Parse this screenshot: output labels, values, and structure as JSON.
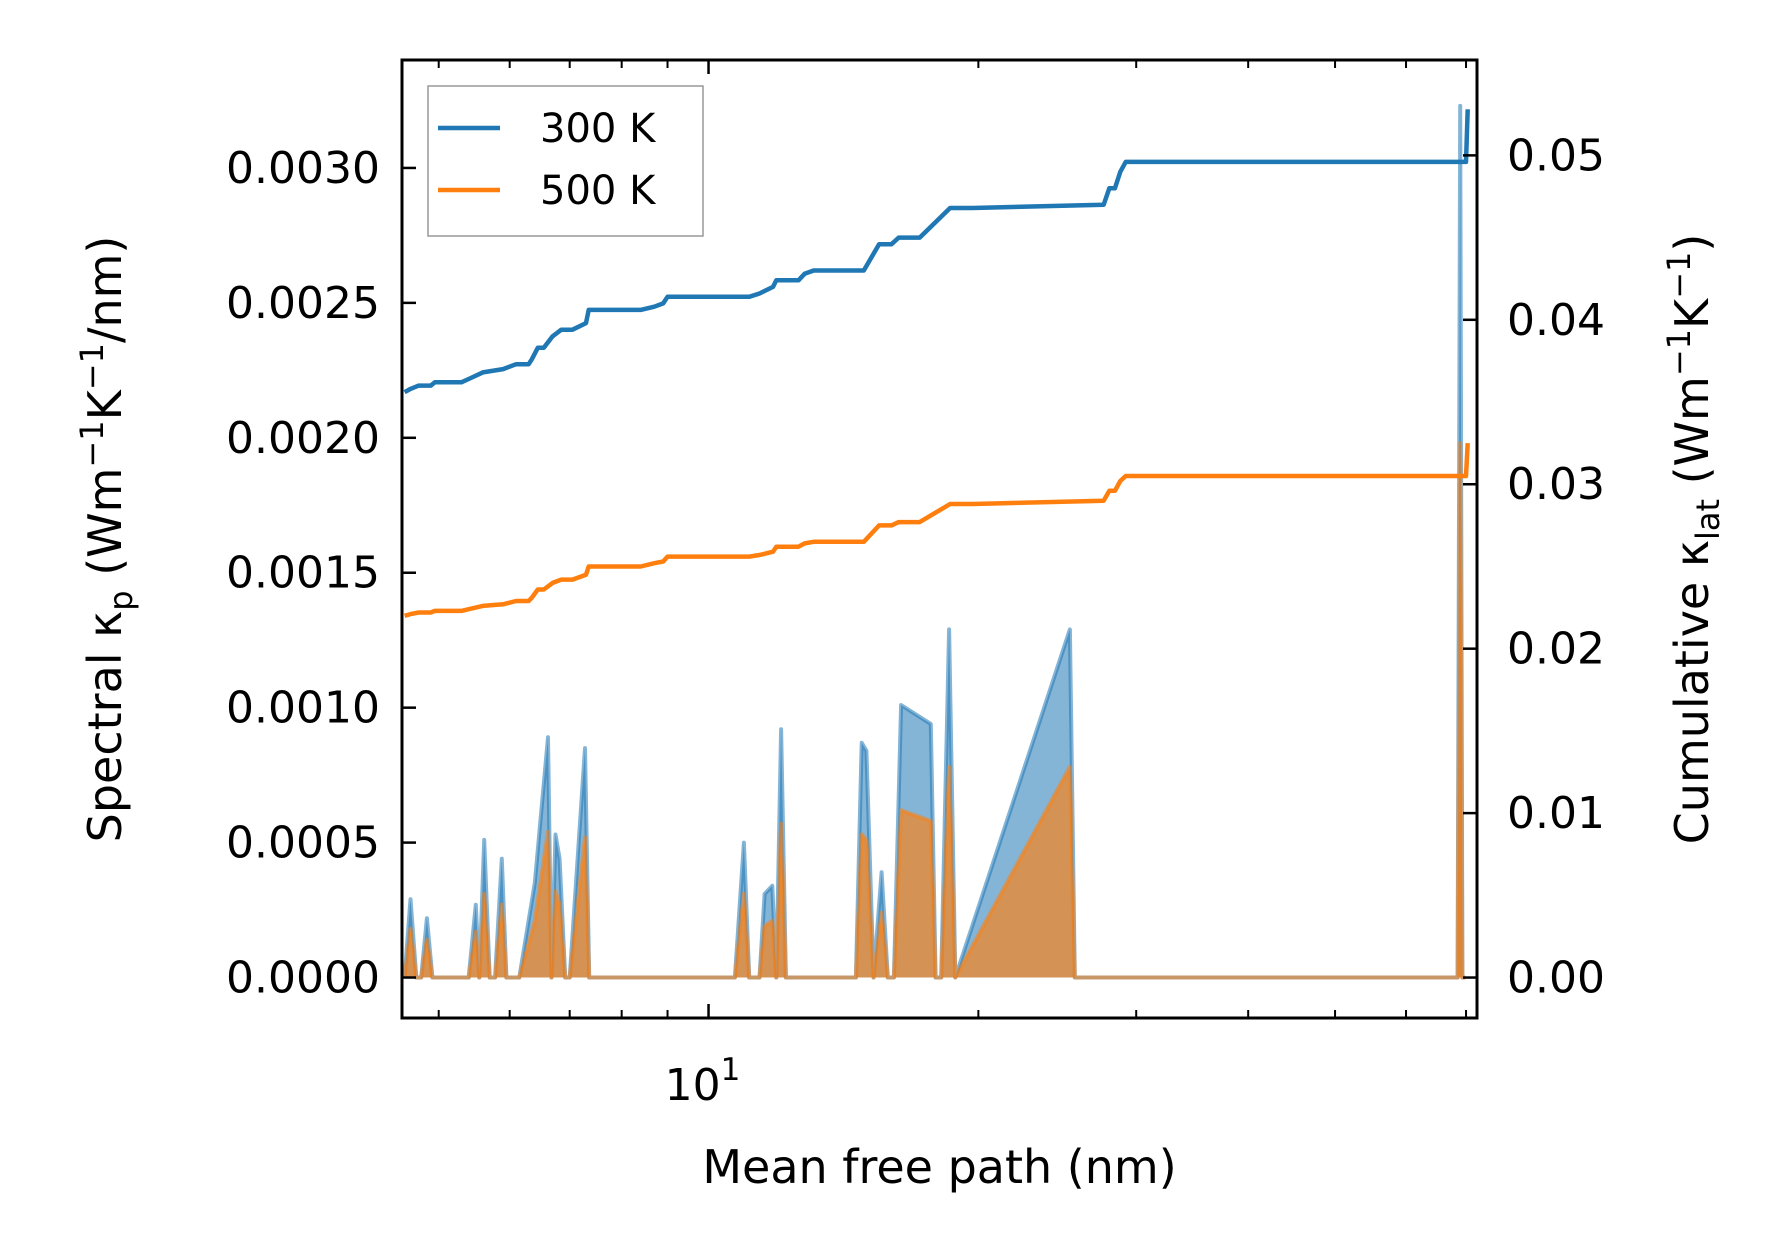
{
  "chart_data": {
    "type": "line",
    "title": "",
    "xlabel": "Mean free path (nm)",
    "xscale": "log",
    "xlim": [
      4.55,
      72
    ],
    "x_tick_labels": [
      {
        "value": 10,
        "base": "10",
        "exp": "1"
      }
    ],
    "ylabel_left": {
      "text": "Spectral κ",
      "sub": "p",
      "rest": " (Wm",
      "sup1": "−1",
      "mid": "K",
      "sup2": "−1",
      "end": "/nm)"
    },
    "ylabel_right": {
      "text": "Cumulative κ",
      "sub": "lat",
      "rest": " (Wm",
      "sup1": "−1",
      "mid": "K",
      "sup2": "−1",
      "end": ")"
    },
    "ylim_left": [
      -0.00015,
      0.0034
    ],
    "ylim_right": [
      -0.00246,
      0.0558
    ],
    "left_ticks": [
      "0.0000",
      "0.0005",
      "0.0010",
      "0.0015",
      "0.0020",
      "0.0025",
      "0.0030"
    ],
    "right_ticks": [
      "0.00",
      "0.01",
      "0.02",
      "0.03",
      "0.04",
      "0.05"
    ],
    "legend": {
      "location": "top-left",
      "entries": [
        "300 K",
        "500 K"
      ]
    },
    "colors": {
      "series_300": "#1f77b4",
      "series_500": "#ff7f0e",
      "fill_300": "#1f77b4",
      "fill_500": "#ff7f0e"
    },
    "series": [
      {
        "name": "300 K",
        "axis": "right",
        "kind": "cumulative",
        "x": [
          4.58,
          4.65,
          4.75,
          4.9,
          4.95,
          5.3,
          5.4,
          5.6,
          5.9,
          6.1,
          6.3,
          6.35,
          6.45,
          6.55,
          6.7,
          6.85,
          7.05,
          7.3,
          7.35,
          8.4,
          8.7,
          8.9,
          9.0,
          11.1,
          11.4,
          11.8,
          11.9,
          12.6,
          12.8,
          13.1,
          13.2,
          14.9,
          15.5,
          16.0,
          16.3,
          16.8,
          17.2,
          18.6,
          19.2,
          19.7,
          27.6,
          28.0,
          28.4,
          28.8,
          29.2,
          69.5,
          70.0,
          70.3
        ],
        "y": [
          0.0356,
          0.0358,
          0.036,
          0.036,
          0.0362,
          0.0362,
          0.0364,
          0.0368,
          0.037,
          0.0373,
          0.0373,
          0.0376,
          0.0383,
          0.0383,
          0.039,
          0.0394,
          0.0394,
          0.0398,
          0.0406,
          0.0406,
          0.0408,
          0.041,
          0.0414,
          0.0414,
          0.0416,
          0.042,
          0.0424,
          0.0424,
          0.0428,
          0.043,
          0.043,
          0.043,
          0.0446,
          0.0446,
          0.045,
          0.045,
          0.045,
          0.0468,
          0.0468,
          0.0468,
          0.047,
          0.048,
          0.048,
          0.049,
          0.0496,
          0.0496,
          0.0496,
          0.0528
        ]
      },
      {
        "name": "500 K",
        "axis": "right",
        "kind": "cumulative",
        "x": [
          4.58,
          4.65,
          4.75,
          4.9,
          4.95,
          5.3,
          5.4,
          5.6,
          5.9,
          6.1,
          6.3,
          6.35,
          6.45,
          6.55,
          6.7,
          6.85,
          7.05,
          7.3,
          7.35,
          8.4,
          8.7,
          8.9,
          9.0,
          11.1,
          11.4,
          11.8,
          11.9,
          12.6,
          12.8,
          13.1,
          13.2,
          14.9,
          15.5,
          16.0,
          16.3,
          16.8,
          17.2,
          18.6,
          19.2,
          19.7,
          27.6,
          28.0,
          28.4,
          28.8,
          29.2,
          69.5,
          70.0,
          70.3
        ],
        "y": [
          0.022,
          0.0221,
          0.0222,
          0.0222,
          0.0223,
          0.0223,
          0.0224,
          0.0226,
          0.0227,
          0.0229,
          0.0229,
          0.0231,
          0.0236,
          0.0236,
          0.024,
          0.0242,
          0.0242,
          0.0245,
          0.025,
          0.025,
          0.0252,
          0.0253,
          0.0256,
          0.0256,
          0.0257,
          0.0259,
          0.0262,
          0.0262,
          0.0264,
          0.0265,
          0.0265,
          0.0265,
          0.0275,
          0.0275,
          0.0277,
          0.0277,
          0.0277,
          0.0288,
          0.0288,
          0.0288,
          0.029,
          0.0296,
          0.0296,
          0.0302,
          0.0305,
          0.0305,
          0.0305,
          0.0325
        ]
      },
      {
        "name": "300 K spectral",
        "axis": "left",
        "kind": "spectral",
        "x": [
          4.58,
          4.65,
          4.72,
          4.78,
          4.85,
          4.92,
          5.0,
          5.4,
          5.5,
          5.55,
          5.62,
          5.7,
          5.78,
          5.88,
          5.95,
          6.05,
          6.15,
          6.4,
          6.62,
          6.68,
          6.75,
          6.82,
          6.92,
          7.0,
          7.28,
          7.36,
          7.45,
          10.7,
          10.95,
          11.1,
          11.4,
          11.55,
          11.78,
          11.9,
          12.05,
          12.2,
          12.45,
          14.6,
          14.82,
          15.0,
          15.28,
          15.6,
          15.85,
          16.1,
          16.4,
          17.7,
          17.92,
          18.18,
          18.55,
          18.85,
          25.3,
          25.62,
          25.9,
          26.25,
          26.62,
          26.95,
          68.5,
          68.95,
          69.35,
          69.85
        ],
        "y": [
          0,
          0.00029,
          0,
          0,
          0.00022,
          0,
          0,
          0,
          0.00027,
          0,
          0.00051,
          0,
          0,
          0.00044,
          0,
          0,
          0,
          0.00035,
          0.00089,
          0,
          0.00053,
          0.00044,
          0,
          0,
          0.00085,
          0,
          0,
          0,
          0.0005,
          0,
          0,
          0.00031,
          0.00034,
          0,
          0.00092,
          0,
          0,
          0,
          0.00087,
          0.00084,
          0,
          0.00039,
          0,
          0,
          0.00101,
          0.00094,
          0,
          0,
          0.00129,
          0,
          0.00129,
          0,
          0,
          0,
          0,
          0,
          0,
          0.00323,
          0,
          0
        ]
      },
      {
        "name": "500 K spectral",
        "axis": "left",
        "kind": "spectral",
        "x": [
          4.58,
          4.65,
          4.72,
          4.78,
          4.85,
          4.92,
          5.0,
          5.4,
          5.5,
          5.55,
          5.62,
          5.7,
          5.78,
          5.88,
          5.95,
          6.05,
          6.15,
          6.4,
          6.62,
          6.68,
          6.75,
          6.82,
          6.92,
          7.0,
          7.28,
          7.36,
          7.45,
          10.7,
          10.95,
          11.1,
          11.4,
          11.55,
          11.78,
          11.9,
          12.05,
          12.2,
          12.45,
          14.6,
          14.82,
          15.0,
          15.28,
          15.6,
          15.85,
          16.1,
          16.4,
          17.7,
          17.92,
          18.18,
          18.55,
          18.85,
          25.3,
          25.62,
          25.9,
          26.25,
          26.62,
          26.95,
          68.5,
          68.95,
          69.35,
          69.85
        ],
        "y": [
          0,
          0.00018,
          0,
          0,
          0.00014,
          0,
          0,
          0,
          0.00017,
          0,
          0.00031,
          0,
          0,
          0.00027,
          0,
          0,
          0,
          0.00021,
          0.00054,
          0,
          0.00032,
          0.00027,
          0,
          0,
          0.00052,
          0,
          0,
          0,
          0.00031,
          0,
          0,
          0.00019,
          0.00021,
          0,
          0.00057,
          0,
          0,
          0,
          0.00053,
          0.00051,
          0,
          0.00024,
          0,
          0,
          0.00062,
          0.00058,
          0,
          0,
          0.00078,
          0,
          0.00078,
          0,
          0,
          0,
          0,
          0,
          0,
          0.00198,
          0,
          0
        ]
      }
    ]
  }
}
